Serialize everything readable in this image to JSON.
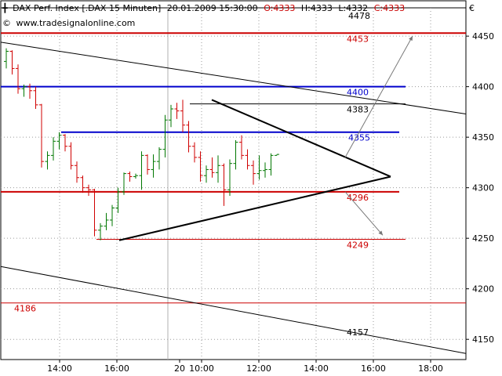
{
  "header": {
    "title": "DAX Perf. Index [.DAX  15 Minuten]",
    "datetime": "20.01.2009 15:30:00",
    "open": "O:4333",
    "high": "H:4333",
    "low": "L:4332",
    "close": "C:4333",
    "source": "www.tradesignalonline.com",
    "currency": "€"
  },
  "colors": {
    "up": "#007700",
    "down": "#d00000",
    "red_level": "#cc0000",
    "blue_level": "#0000cc",
    "trend": "#000000",
    "arrow": "#777777",
    "grid": "#9a9a9a"
  },
  "chart_data": {
    "type": "ohlc",
    "x_ticks": [
      "14:00",
      "16:00",
      "20",
      "10:00",
      "12:00",
      "14:00",
      "16:00",
      "18:00"
    ],
    "y_ticks": [
      4150,
      4200,
      4250,
      4300,
      4350,
      4400,
      4450
    ],
    "ylim": [
      4130,
      4478
    ],
    "grid": true,
    "bar_times": [
      "19.01 12:45",
      "19.01 13:00",
      "19.01 13:15",
      "19.01 13:30",
      "19.01 13:45",
      "19.01 14:00",
      "19.01 14:15",
      "19.01 14:30",
      "19.01 14:45",
      "19.01 15:00",
      "19.01 15:15",
      "19.01 15:30",
      "19.01 15:45",
      "19.01 16:00",
      "19.01 16:15",
      "19.01 16:30",
      "19.01 16:45",
      "19.01 17:00",
      "19.01 17:15",
      "19.01 17:30",
      "20.01 09:00",
      "20.01 09:15",
      "20.01 09:30",
      "20.01 09:45",
      "20.01 10:00",
      "20.01 10:15",
      "20.01 10:30",
      "20.01 10:45",
      "20.01 11:00",
      "20.01 11:15",
      "20.01 11:30",
      "20.01 11:45",
      "20.01 12:00",
      "20.01 12:15",
      "20.01 12:30",
      "20.01 12:45",
      "20.01 13:00",
      "20.01 13:15",
      "20.01 13:30",
      "20.01 13:45",
      "20.01 14:00",
      "20.01 14:15",
      "20.01 14:30",
      "20.01 14:45",
      "20.01 15:00",
      "20.01 15:15",
      "20.01 15:30"
    ],
    "ohlc": [
      [
        4425,
        4438,
        4418,
        4435
      ],
      [
        4435,
        4436,
        4412,
        4418
      ],
      [
        4418,
        4422,
        4393,
        4398
      ],
      [
        4398,
        4402,
        4390,
        4400
      ],
      [
        4400,
        4403,
        4388,
        4396
      ],
      [
        4396,
        4400,
        4378,
        4382
      ],
      [
        4382,
        4383,
        4320,
        4326
      ],
      [
        4326,
        4336,
        4318,
        4332
      ],
      [
        4332,
        4350,
        4327,
        4346
      ],
      [
        4346,
        4355,
        4338,
        4352
      ],
      [
        4352,
        4353,
        4336,
        4341
      ],
      [
        4341,
        4345,
        4318,
        4322
      ],
      [
        4322,
        4326,
        4305,
        4310
      ],
      [
        4310,
        4312,
        4295,
        4300
      ],
      [
        4300,
        4303,
        4292,
        4298
      ],
      [
        4298,
        4299,
        4252,
        4258
      ],
      [
        4258,
        4265,
        4248,
        4262
      ],
      [
        4262,
        4275,
        4258,
        4268
      ],
      [
        4268,
        4283,
        4262,
        4280
      ],
      [
        4280,
        4300,
        4275,
        4296
      ],
      [
        4296,
        4315,
        4293,
        4314
      ],
      [
        4314,
        4316,
        4306,
        4311
      ],
      [
        4311,
        4314,
        4309,
        4312
      ],
      [
        4312,
        4336,
        4298,
        4332
      ],
      [
        4332,
        4333,
        4313,
        4318
      ],
      [
        4318,
        4333,
        4310,
        4326
      ],
      [
        4326,
        4340,
        4318,
        4338
      ],
      [
        4338,
        4372,
        4330,
        4367
      ],
      [
        4367,
        4382,
        4360,
        4378
      ],
      [
        4378,
        4384,
        4368,
        4376
      ],
      [
        4376,
        4387,
        4355,
        4362
      ],
      [
        4362,
        4366,
        4335,
        4341
      ],
      [
        4341,
        4345,
        4325,
        4330
      ],
      [
        4330,
        4336,
        4306,
        4312
      ],
      [
        4312,
        4322,
        4305,
        4318
      ],
      [
        4318,
        4330,
        4310,
        4315
      ],
      [
        4315,
        4332,
        4305,
        4322
      ],
      [
        4322,
        4324,
        4282,
        4298
      ],
      [
        4298,
        4328,
        4292,
        4324
      ],
      [
        4324,
        4347,
        4318,
        4345
      ],
      [
        4345,
        4352,
        4328,
        4332
      ],
      [
        4332,
        4338,
        4318,
        4322
      ],
      [
        4322,
        4327,
        4303,
        4314
      ],
      [
        4314,
        4332,
        4308,
        4317
      ],
      [
        4317,
        4325,
        4310,
        4318
      ],
      [
        4318,
        4334,
        4312,
        4332
      ],
      [
        4332,
        4333,
        4332,
        4333
      ]
    ],
    "levels": [
      {
        "value": 4453,
        "label": "4453",
        "color": "red"
      },
      {
        "value": 4400,
        "label": "4400",
        "color": "blue"
      },
      {
        "value": 4383,
        "label": "4383",
        "color": "black"
      },
      {
        "value": 4355,
        "label": "4355",
        "color": "blue"
      },
      {
        "value": 4296,
        "label": "4296",
        "color": "red"
      },
      {
        "value": 4249,
        "label": "4249",
        "color": "red"
      },
      {
        "value": 4186,
        "label": "4186",
        "color": "red"
      }
    ],
    "channel_label": "4157",
    "top_label": "4478"
  }
}
